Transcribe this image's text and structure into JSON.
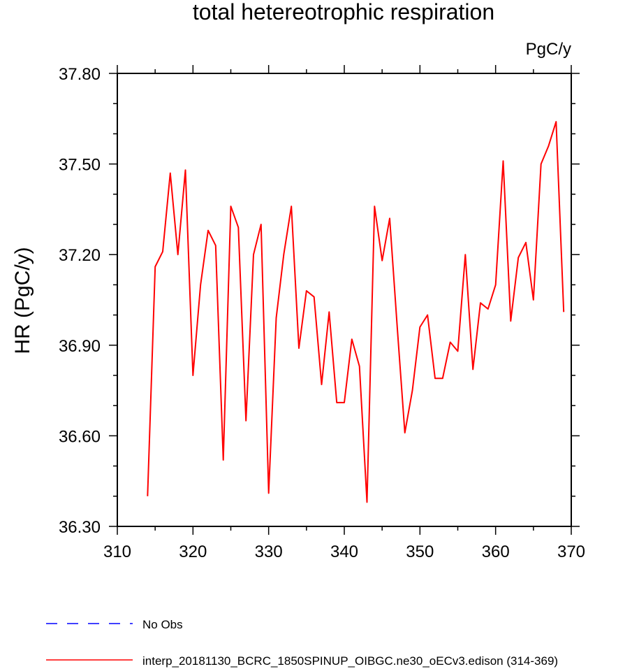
{
  "chart_data": {
    "type": "line",
    "title": "total hetereotrophic respiration",
    "units_label": "PgC/y",
    "ylabel": "HR  (PgC/y)",
    "xlabel": "",
    "xlim": [
      310,
      370
    ],
    "ylim": [
      36.3,
      37.8
    ],
    "xticks": [
      310,
      320,
      330,
      340,
      350,
      360,
      370
    ],
    "xtick_labels": [
      "310",
      "320",
      "330",
      "340",
      "350",
      "360",
      "370"
    ],
    "yticks": [
      36.3,
      36.6,
      36.9,
      37.2,
      37.5,
      37.8
    ],
    "ytick_labels": [
      "36.30",
      "36.60",
      "36.90",
      "37.20",
      "37.50",
      "37.80"
    ],
    "grid": false,
    "legend": {
      "placement": "below",
      "entries": [
        {
          "label": "No Obs",
          "color": "#0000ff",
          "dash": "dashed"
        },
        {
          "label": "interp_20181130_BCRC_1850SPINUP_OIBGC.ne30_oECv3.edison (314-369)",
          "color": "#ff0000",
          "dash": "solid"
        }
      ]
    },
    "series": [
      {
        "name": "interp_20181130_BCRC_1850SPINUP_OIBGC.ne30_oECv3.edison (314-369)",
        "color": "#ff0000",
        "x": [
          314,
          315,
          316,
          317,
          318,
          319,
          320,
          321,
          322,
          323,
          324,
          325,
          326,
          327,
          328,
          329,
          330,
          331,
          332,
          333,
          334,
          335,
          336,
          337,
          338,
          339,
          340,
          341,
          342,
          343,
          344,
          345,
          346,
          347,
          348,
          349,
          350,
          351,
          352,
          353,
          354,
          355,
          356,
          357,
          358,
          359,
          360,
          361,
          362,
          363,
          364,
          365,
          366,
          367,
          368,
          369
        ],
        "y": [
          36.4,
          37.16,
          37.21,
          37.47,
          37.2,
          37.48,
          36.8,
          37.1,
          37.28,
          37.23,
          36.52,
          37.36,
          37.29,
          36.65,
          37.2,
          37.3,
          36.41,
          36.99,
          37.2,
          37.36,
          36.89,
          37.08,
          37.06,
          36.77,
          37.01,
          36.71,
          36.71,
          36.92,
          36.83,
          36.38,
          37.36,
          37.18,
          37.32,
          36.96,
          36.61,
          36.75,
          36.96,
          37.0,
          36.79,
          36.79,
          36.91,
          36.88,
          37.2,
          36.82,
          37.04,
          37.02,
          37.1,
          37.51,
          36.98,
          37.19,
          37.24,
          37.05,
          37.5,
          37.56,
          37.64,
          37.01
        ]
      }
    ]
  }
}
